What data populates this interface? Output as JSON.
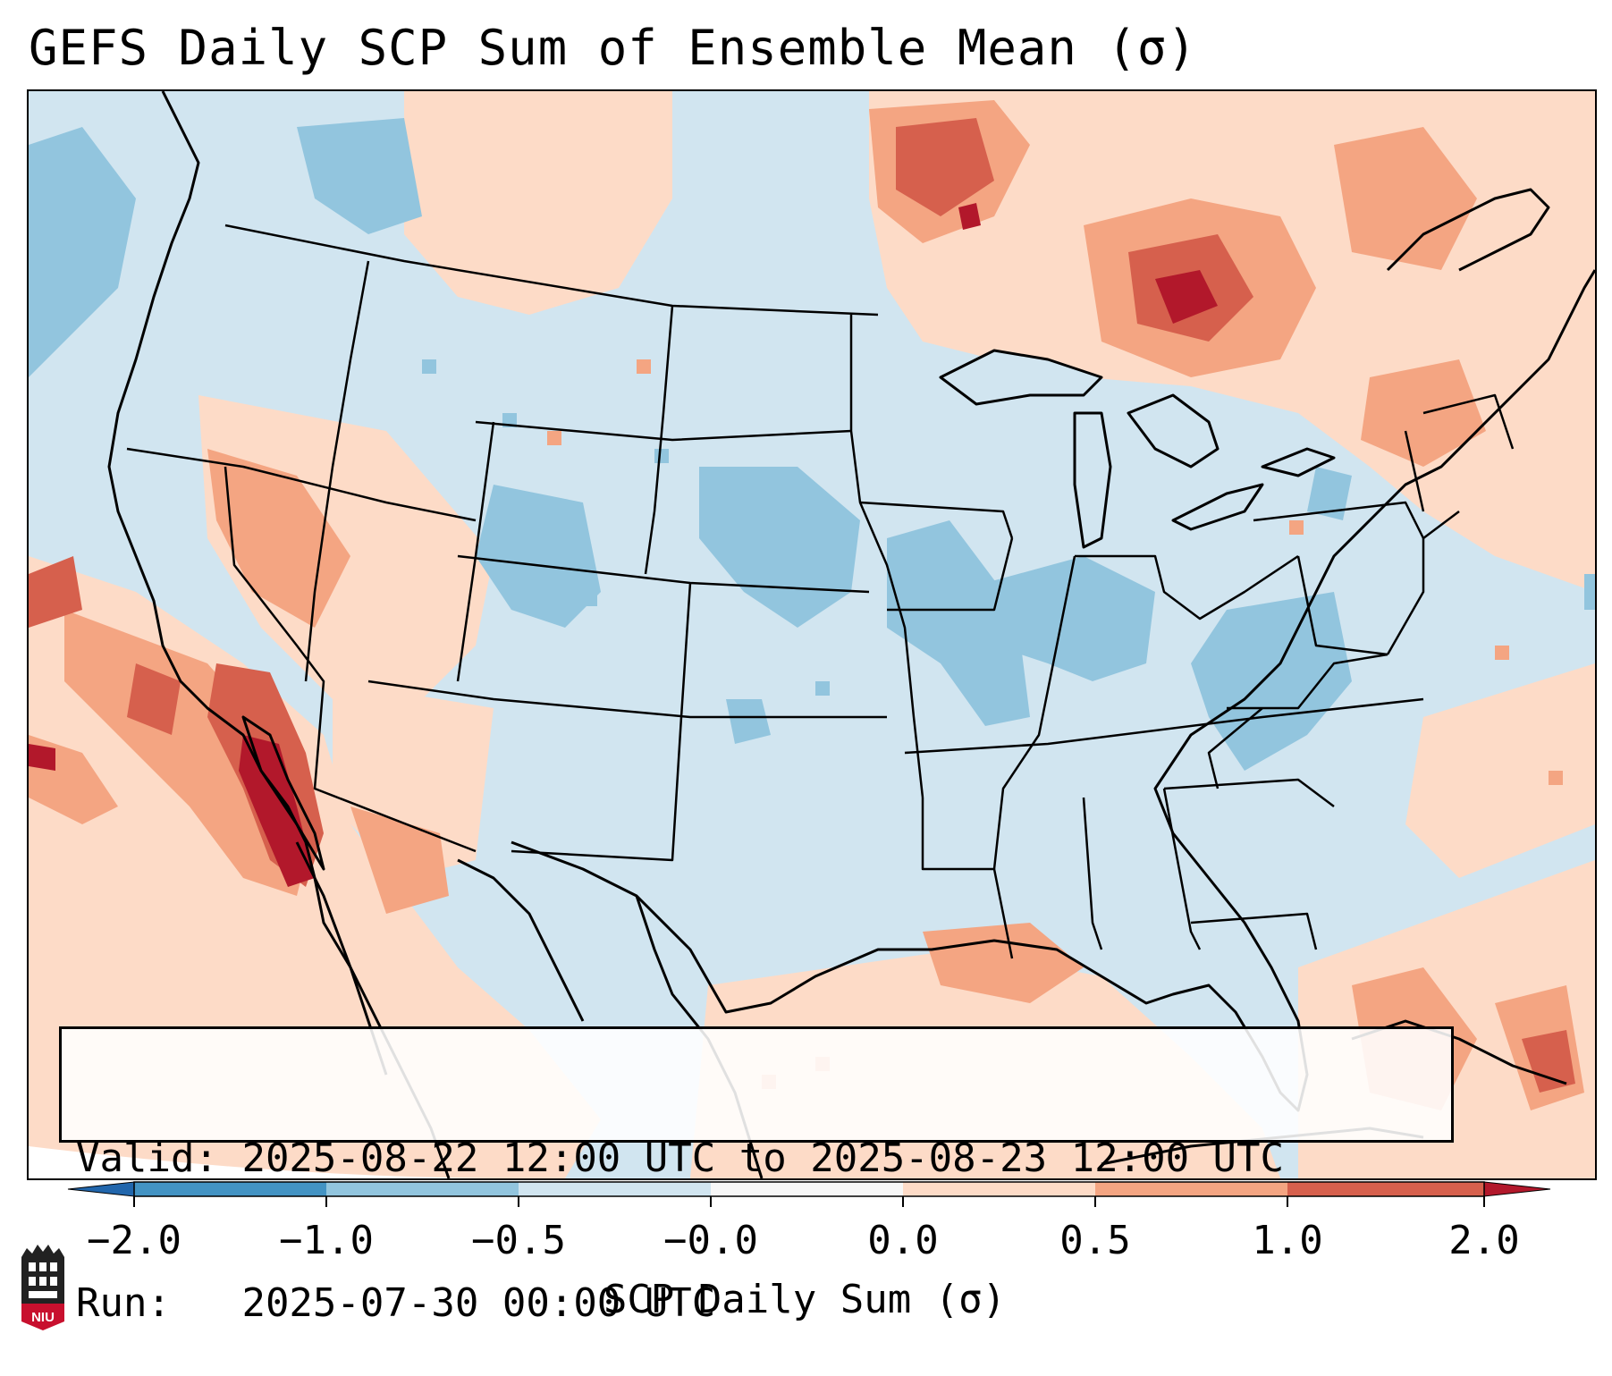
{
  "title": "GEFS Daily SCP Sum of Ensemble Mean (σ)",
  "info": {
    "valid_label": "Valid:",
    "valid_value": "2025-08-22 12:00 UTC to 2025-08-23 12:00 UTC",
    "run_label": "Run:",
    "run_value": "2025-07-30 00:00 UTC"
  },
  "colorbar": {
    "label": "SCP Daily Sum (σ)",
    "ticks": [
      "−2.0",
      "−1.0",
      "−0.5",
      "−0.0",
      "0.0",
      "0.5",
      "1.0",
      "2.0"
    ],
    "colors": {
      "under": "#2166ac",
      "c1": "#4393c3",
      "c2": "#92c5de",
      "c3": "#d1e5f0",
      "c4": "#f7f7f7",
      "c5": "#fddbc7",
      "c6": "#f4a582",
      "c7": "#d6604d",
      "over": "#b2182b"
    }
  },
  "logo": {
    "text": "NIU"
  }
}
